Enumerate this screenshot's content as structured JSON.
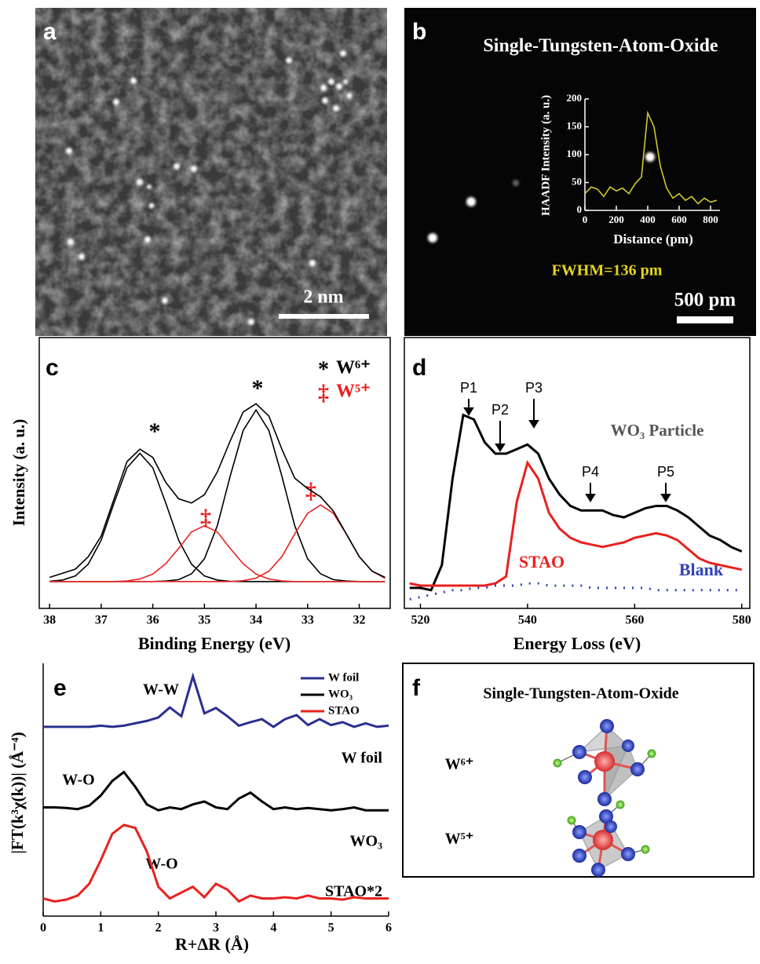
{
  "panels": {
    "labels": [
      "a",
      "b",
      "c",
      "d",
      "e",
      "f"
    ],
    "a": {
      "scale": "2 nm"
    },
    "b": {
      "title": "Single-Tungsten-Atom-Oxide",
      "fwhm": "FWHM=136 pm",
      "scale": "500 pm"
    },
    "f": {
      "title": "Single-Tungsten-Atom-Oxide",
      "states": [
        "W⁶⁺",
        "W⁵⁺"
      ]
    }
  },
  "chart_data": [
    {
      "type": "line",
      "xlabel": "Distance (pm)",
      "ylabel": "HAADF Intensity (a. u.)",
      "xlim": [
        0,
        860
      ],
      "ylim": [
        0,
        200
      ],
      "xticks": [
        0,
        200,
        400,
        600,
        800
      ],
      "yticks": [
        0,
        50,
        100,
        150,
        200
      ],
      "x": [
        0,
        40,
        80,
        120,
        160,
        200,
        240,
        280,
        320,
        360,
        400,
        440,
        480,
        520,
        560,
        600,
        640,
        680,
        720,
        760,
        800,
        840
      ],
      "series": [
        {
          "color": "#cfc92a",
          "values": [
            30,
            42,
            38,
            25,
            42,
            35,
            40,
            30,
            48,
            60,
            175,
            150,
            80,
            40,
            22,
            30,
            18,
            25,
            12,
            22,
            15,
            18
          ]
        }
      ]
    },
    {
      "type": "line",
      "xlabel": "Binding Energy (eV)",
      "ylabel": "Intensity (a. u.)",
      "xlim": [
        38.2,
        31.4
      ],
      "ylim": [
        -0.13,
        1.18
      ],
      "xticks": [
        38,
        37,
        36,
        35,
        34,
        33,
        32
      ],
      "legend": [
        {
          "symbol": "*",
          "label": "W⁶⁺",
          "color": "#000000"
        },
        {
          "symbol": "‡",
          "label": "W⁵⁺",
          "color": "#e8211f"
        }
      ],
      "annotations": [
        "*",
        "*",
        "‡",
        "‡"
      ],
      "x": [
        38,
        37.75,
        37.5,
        37.25,
        37,
        36.75,
        36.5,
        36.25,
        36,
        35.75,
        35.5,
        35.25,
        35,
        34.75,
        34.5,
        34.25,
        34,
        33.75,
        33.5,
        33.25,
        33,
        32.75,
        32.5,
        32.25,
        32,
        31.75,
        31.5
      ],
      "series": [
        {
          "color": "#000000",
          "values": [
            0.001,
            0.007,
            0.027,
            0.084,
            0.2,
            0.38,
            0.55,
            0.62,
            0.55,
            0.38,
            0.2,
            0.084,
            0.027,
            0.007,
            0.001,
            0,
            0,
            0,
            0,
            0,
            0,
            0,
            0,
            0,
            0,
            0,
            0
          ]
        },
        {
          "color": "#000000",
          "values": [
            0,
            0,
            0,
            0,
            0,
            0,
            0,
            0,
            0,
            0.002,
            0.009,
            0.037,
            0.11,
            0.27,
            0.51,
            0.73,
            0.83,
            0.73,
            0.51,
            0.27,
            0.11,
            0.037,
            0.009,
            0.002,
            0,
            0,
            0
          ]
        },
        {
          "color": "#e8211f",
          "values": [
            0,
            0,
            0,
            0,
            0,
            0,
            0.003,
            0.012,
            0.036,
            0.086,
            0.16,
            0.24,
            0.27,
            0.24,
            0.16,
            0.086,
            0.036,
            0.012,
            0.003,
            0,
            0,
            0,
            0,
            0,
            0,
            0,
            0
          ]
        },
        {
          "color": "#e8211f",
          "values": [
            0,
            0,
            0,
            0,
            0,
            0,
            0,
            0,
            0,
            0,
            0,
            0,
            0,
            0,
            0,
            0.004,
            0.016,
            0.05,
            0.12,
            0.23,
            0.33,
            0.37,
            0.33,
            0.23,
            0.12,
            0.05,
            0.016
          ]
        },
        {
          "color": "#000000",
          "values": [
            0.02,
            0.04,
            0.06,
            0.12,
            0.22,
            0.4,
            0.58,
            0.64,
            0.6,
            0.48,
            0.4,
            0.38,
            0.42,
            0.53,
            0.68,
            0.82,
            0.86,
            0.8,
            0.64,
            0.5,
            0.45,
            0.41,
            0.34,
            0.23,
            0.12,
            0.05,
            0.02
          ]
        }
      ]
    },
    {
      "type": "line",
      "xlabel": "Energy Loss (eV)",
      "xlim": [
        517,
        581.5
      ],
      "ylim": [
        -0.02,
        1.17
      ],
      "xticks": [
        520,
        540,
        560,
        580
      ],
      "annotations": [
        "P1",
        "P2",
        "P3",
        "P4",
        "P5"
      ],
      "x": [
        518,
        520,
        522,
        524,
        526,
        528,
        530,
        532,
        534,
        536,
        538,
        540,
        542,
        544,
        546,
        548,
        550,
        552,
        554,
        556,
        558,
        560,
        562,
        564,
        566,
        568,
        570,
        572,
        574,
        576,
        578,
        580
      ],
      "series": [
        {
          "name": "WO₃ Particle",
          "color": "#000000",
          "values": [
            0.07,
            0.07,
            0.06,
            0.17,
            0.55,
            0.83,
            0.81,
            0.71,
            0.66,
            0.66,
            0.68,
            0.7,
            0.66,
            0.55,
            0.48,
            0.43,
            0.41,
            0.41,
            0.41,
            0.39,
            0.38,
            0.4,
            0.42,
            0.43,
            0.43,
            0.41,
            0.38,
            0.34,
            0.3,
            0.28,
            0.25,
            0.23
          ]
        },
        {
          "name": "STAO",
          "color": "#e8211f",
          "values": [
            0.09,
            0.08,
            0.08,
            0.08,
            0.08,
            0.08,
            0.08,
            0.08,
            0.09,
            0.12,
            0.45,
            0.62,
            0.55,
            0.4,
            0.33,
            0.29,
            0.27,
            0.26,
            0.25,
            0.26,
            0.27,
            0.29,
            0.3,
            0.31,
            0.3,
            0.28,
            0.24,
            0.2,
            0.18,
            0.17,
            0.16,
            0.15
          ]
        },
        {
          "name": "Blank",
          "color": "#3341b8",
          "style": "dotted",
          "values": [
            0.02,
            0.03,
            0.04,
            0.05,
            0.06,
            0.06,
            0.07,
            0.07,
            0.08,
            0.08,
            0.08,
            0.09,
            0.09,
            0.08,
            0.08,
            0.08,
            0.08,
            0.07,
            0.07,
            0.07,
            0.07,
            0.07,
            0.07,
            0.06,
            0.06,
            0.06,
            0.06,
            0.06,
            0.06,
            0.06,
            0.06,
            0.06
          ]
        }
      ]
    },
    {
      "type": "line",
      "xlabel": "R+ΔR (Å)",
      "ylabel": "|FT(k³χ(k))| (Å⁻⁴)",
      "xlim": [
        0,
        6
      ],
      "ylim": [
        0,
        4.3
      ],
      "xticks": [
        0,
        1,
        2,
        3,
        4,
        5,
        6
      ],
      "annotations": [
        "W-W",
        "W-O",
        "W-O"
      ],
      "curve_labels": [
        "W foil",
        "WO₃",
        "STAO*2"
      ],
      "x": [
        0,
        0.2,
        0.4,
        0.6,
        0.8,
        1,
        1.2,
        1.4,
        1.6,
        1.8,
        2,
        2.2,
        2.4,
        2.6,
        2.8,
        3,
        3.2,
        3.4,
        3.6,
        3.8,
        4,
        4.2,
        4.4,
        4.6,
        4.8,
        5,
        5.2,
        5.4,
        5.6,
        5.8,
        6
      ],
      "series": [
        {
          "name": "W foil",
          "color": "#2b2f8f",
          "values": [
            3.22,
            3.22,
            3.22,
            3.22,
            3.22,
            3.24,
            3.22,
            3.24,
            3.28,
            3.32,
            3.38,
            3.55,
            3.4,
            4.08,
            3.45,
            3.54,
            3.4,
            3.24,
            3.3,
            3.35,
            3.22,
            3.35,
            3.42,
            3.25,
            3.35,
            3.25,
            3.3,
            3.22,
            3.28,
            3.22,
            3.24
          ]
        },
        {
          "name": "WO₃",
          "color": "#000000",
          "values": [
            1.85,
            1.85,
            1.84,
            1.82,
            1.88,
            2.05,
            2.3,
            2.45,
            2.2,
            1.9,
            1.8,
            1.85,
            1.82,
            1.9,
            1.95,
            1.85,
            1.82,
            2,
            2.1,
            1.95,
            1.82,
            1.85,
            1.82,
            1.84,
            1.82,
            1.8,
            1.82,
            1.85,
            1.8,
            1.8,
            1.8
          ]
        },
        {
          "name": "STAO",
          "color": "#e8211f",
          "values": [
            0.3,
            0.25,
            0.28,
            0.35,
            0.55,
            0.95,
            1.4,
            1.55,
            1.5,
            1.1,
            0.5,
            0.3,
            0.4,
            0.5,
            0.32,
            0.55,
            0.45,
            0.25,
            0.35,
            0.3,
            0.3,
            0.32,
            0.3,
            0.35,
            0.3,
            0.3,
            0.28,
            0.32,
            0.3,
            0.3,
            0.3
          ]
        }
      ]
    }
  ]
}
